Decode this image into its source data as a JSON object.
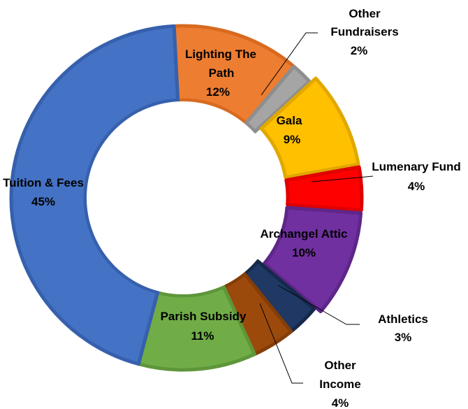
{
  "chart_data": {
    "type": "pie",
    "style": "donut",
    "slices": [
      {
        "label": "Lighting The Path",
        "value": 12,
        "pct_label": "12%",
        "color": "#ED7D31",
        "edge": "#D86A20"
      },
      {
        "label": "Other Fundraisers",
        "value": 2,
        "pct_label": "2%",
        "color": "#A5A5A5",
        "edge": "#8E8E8E"
      },
      {
        "label": "Gala",
        "value": 9,
        "pct_label": "9%",
        "color": "#FFC000",
        "edge": "#E0A800"
      },
      {
        "label": "Lumenary Fund",
        "value": 4,
        "pct_label": "4%",
        "color": "#FF0000",
        "edge": "#E00000"
      },
      {
        "label": "Archangel Attic",
        "value": 10,
        "pct_label": "10%",
        "color": "#7030A0",
        "edge": "#5E2688"
      },
      {
        "label": "Athletics",
        "value": 3,
        "pct_label": "3%",
        "color": "#1F3864",
        "edge": "#17294B"
      },
      {
        "label": "Other Income",
        "value": 4,
        "pct_label": "4%",
        "color": "#9C4A0C",
        "edge": "#843D08"
      },
      {
        "label": "Parish Subsidy",
        "value": 11,
        "pct_label": "11%",
        "color": "#70AD47",
        "edge": "#5E963A"
      },
      {
        "label": "Tuition & Fees",
        "value": 45,
        "pct_label": "45%",
        "color": "#4472C4",
        "edge": "#3660AD"
      }
    ],
    "legend": "none",
    "data_labels": "category name and percentage"
  }
}
